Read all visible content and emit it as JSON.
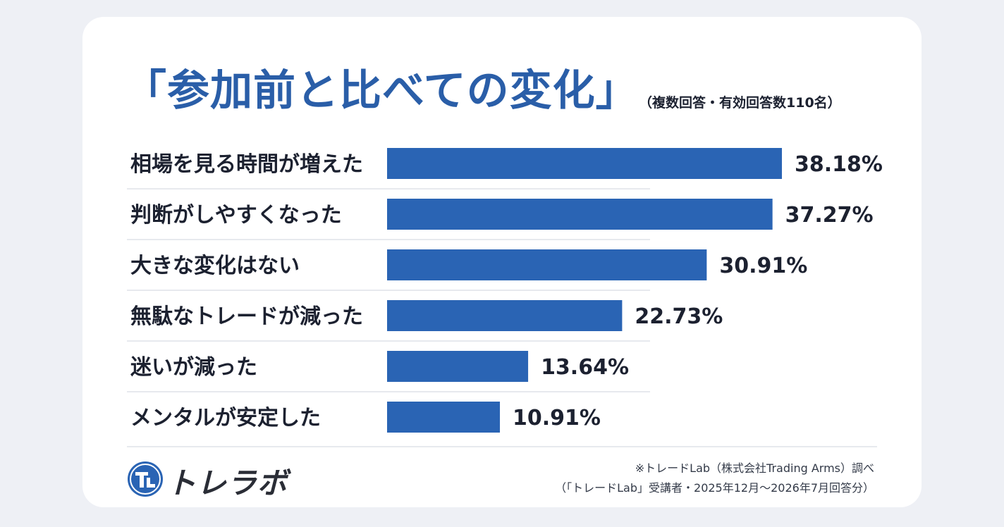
{
  "chart_data": {
    "type": "bar",
    "orientation": "horizontal",
    "title": "「参加前と比べての変化」",
    "subtitle": "（複数回答・有効回答数110名）",
    "categories": [
      "相場を見る時間が増えた",
      "判断がしやすくなった",
      "大きな変化はない",
      "無駄なトレードが減った",
      "迷いが減った",
      "メンタルが安定した"
    ],
    "values": [
      38.18,
      37.27,
      30.91,
      22.73,
      13.64,
      10.91
    ],
    "value_labels": [
      "38.18%",
      "37.27%",
      "30.91%",
      "22.73%",
      "13.64%",
      "10.91%"
    ],
    "xlim": [
      0,
      38.18
    ],
    "grid": false,
    "bar_color": "#2a64b4"
  },
  "branding": {
    "logo_text": "トレラボ",
    "logo_color": "#2a64b4"
  },
  "source": {
    "line1": "※トレードLab（株式会社Trading Arms）調べ",
    "line2": "（「トレードLab」受講者・2025年12月〜2026年7月回答分）"
  }
}
